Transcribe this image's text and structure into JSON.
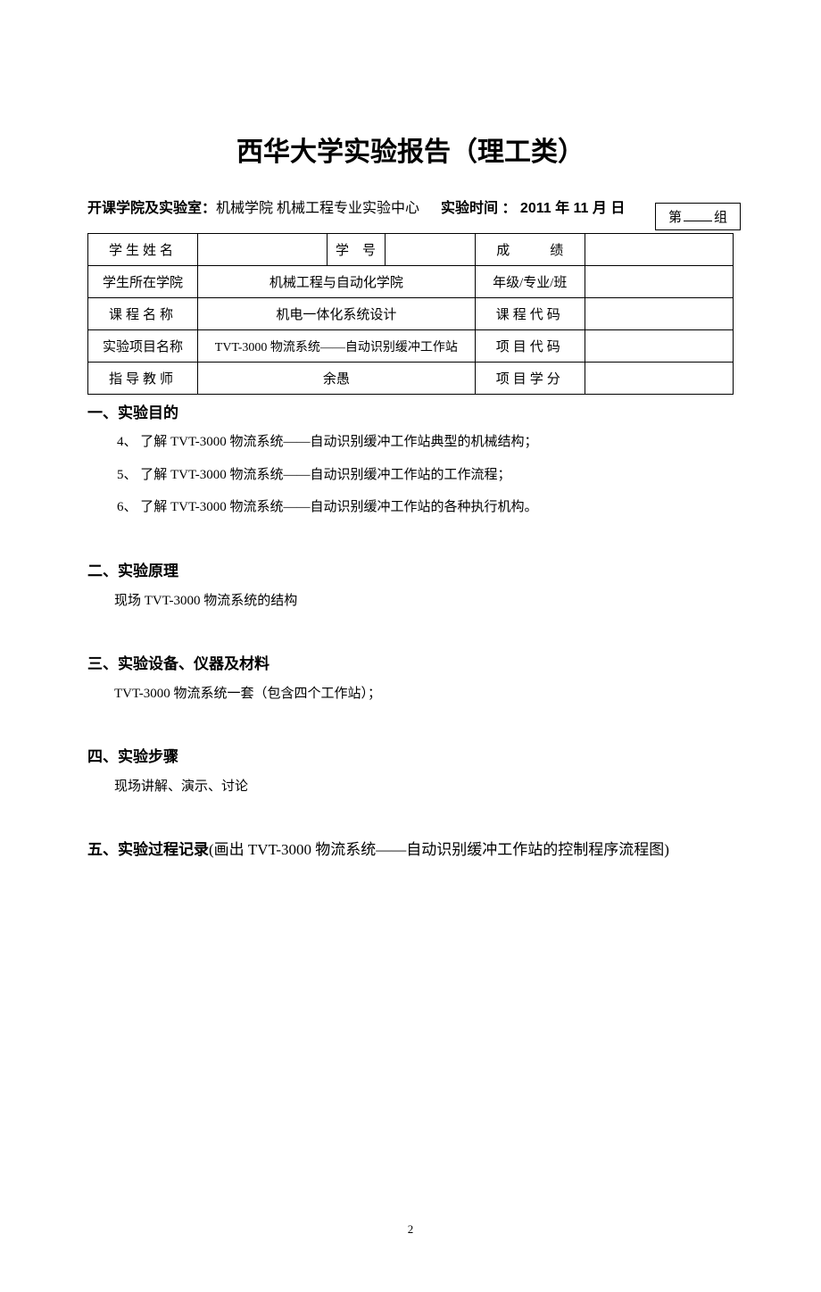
{
  "group_box": {
    "prefix": "第",
    "suffix": "组"
  },
  "title": "西华大学实验报告（理工类）",
  "header": {
    "label_school": "开课学院及实验室：",
    "school_value": "机械学院 机械工程专业实验中心",
    "label_time": "实验时间 ：",
    "date": " 2011 年  11 月   日"
  },
  "table": {
    "row1": {
      "c1": "学生姓名",
      "c2": "",
      "c3": "学　号",
      "c4": "",
      "c5": "成　　　绩",
      "c6": ""
    },
    "row2": {
      "c1": "学生所在学院",
      "c2": "机械工程与自动化学院",
      "c5": "年级/专业/班",
      "c6": ""
    },
    "row3": {
      "c1": "课程名称",
      "c2": "机电一体化系统设计",
      "c5": "课程代码",
      "c6": ""
    },
    "row4": {
      "c1": "实验项目名称",
      "c2": "TVT-3000 物流系统——自动识别缓冲工作站",
      "c5": "项目代码",
      "c6": ""
    },
    "row5": {
      "c1": "指导教师",
      "c2": "余愚",
      "c5": "项目学分",
      "c6": ""
    }
  },
  "sections": {
    "s1": {
      "heading": "一、实验目的",
      "items": [
        "4、 了解 TVT-3000 物流系统——自动识别缓冲工作站典型的机械结构；",
        "5、 了解 TVT-3000 物流系统——自动识别缓冲工作站的工作流程；",
        "6、 了解 TVT-3000 物流系统——自动识别缓冲工作站的各种执行机构。"
      ]
    },
    "s2": {
      "heading": "二、实验原理",
      "content": "现场 TVT-3000 物流系统的结构"
    },
    "s3": {
      "heading": "三、实验设备、仪器及材料",
      "content": "TVT-3000 物流系统一套（包含四个工作站）；"
    },
    "s4": {
      "heading": "四、实验步骤",
      "content": "现场讲解、演示、讨论"
    },
    "s5": {
      "heading": "五、实验过程记录",
      "suffix": "(画出 TVT-3000 物流系统——自动识别缓冲工作站的控制程序流程图)"
    }
  },
  "page_number": "2"
}
